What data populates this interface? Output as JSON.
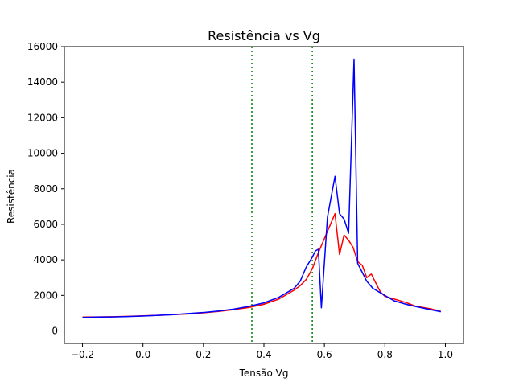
{
  "chart_data": {
    "type": "line",
    "title": "Resistência vs Vg",
    "xlabel": "Tensão Vg",
    "ylabel": "Resistência",
    "xlim": [
      -0.26,
      1.06
    ],
    "ylim": [
      -700,
      16000
    ],
    "grid": false,
    "legend": "none",
    "x_ticks": [
      -0.2,
      0.0,
      0.2,
      0.4,
      0.6,
      0.8,
      1.0
    ],
    "x_tick_labels": [
      "−0.2",
      "0.0",
      "0.2",
      "0.4",
      "0.6",
      "0.8",
      "1.0"
    ],
    "y_ticks": [
      0,
      2000,
      4000,
      6000,
      8000,
      10000,
      12000,
      14000,
      16000
    ],
    "y_tick_labels": [
      "0",
      "2000",
      "4000",
      "6000",
      "8000",
      "10000",
      "12000",
      "14000",
      "16000"
    ],
    "vlines": [
      {
        "x": 0.36,
        "color": "#008000",
        "style": "dotted"
      },
      {
        "x": 0.56,
        "color": "#008000",
        "style": "dotted"
      }
    ],
    "series": [
      {
        "color": "#ff0000",
        "points": [
          [
            -0.2,
            780
          ],
          [
            -0.15,
            790
          ],
          [
            -0.1,
            800
          ],
          [
            -0.05,
            820
          ],
          [
            0.0,
            850
          ],
          [
            0.05,
            880
          ],
          [
            0.1,
            920
          ],
          [
            0.15,
            960
          ],
          [
            0.2,
            1020
          ],
          [
            0.25,
            1100
          ],
          [
            0.3,
            1200
          ],
          [
            0.35,
            1320
          ],
          [
            0.4,
            1500
          ],
          [
            0.45,
            1800
          ],
          [
            0.5,
            2300
          ],
          [
            0.52,
            2550
          ],
          [
            0.54,
            2900
          ],
          [
            0.56,
            3500
          ],
          [
            0.58,
            4400
          ],
          [
            0.6,
            5200
          ],
          [
            0.62,
            6000
          ],
          [
            0.635,
            6600
          ],
          [
            0.65,
            4300
          ],
          [
            0.665,
            5400
          ],
          [
            0.68,
            5100
          ],
          [
            0.695,
            4700
          ],
          [
            0.71,
            3900
          ],
          [
            0.725,
            3700
          ],
          [
            0.74,
            3000
          ],
          [
            0.755,
            3200
          ],
          [
            0.77,
            2700
          ],
          [
            0.785,
            2200
          ],
          [
            0.8,
            1950
          ],
          [
            0.83,
            1800
          ],
          [
            0.87,
            1600
          ],
          [
            0.9,
            1400
          ],
          [
            0.95,
            1250
          ],
          [
            0.985,
            1100
          ]
        ]
      },
      {
        "color": "#0000ff",
        "points": [
          [
            -0.2,
            760
          ],
          [
            -0.15,
            780
          ],
          [
            -0.1,
            790
          ],
          [
            -0.05,
            810
          ],
          [
            0.0,
            840
          ],
          [
            0.05,
            880
          ],
          [
            0.1,
            920
          ],
          [
            0.15,
            980
          ],
          [
            0.2,
            1040
          ],
          [
            0.25,
            1120
          ],
          [
            0.3,
            1230
          ],
          [
            0.35,
            1380
          ],
          [
            0.4,
            1580
          ],
          [
            0.45,
            1900
          ],
          [
            0.5,
            2400
          ],
          [
            0.52,
            2800
          ],
          [
            0.54,
            3600
          ],
          [
            0.56,
            4150
          ],
          [
            0.57,
            4500
          ],
          [
            0.58,
            4600
          ],
          [
            0.59,
            1300
          ],
          [
            0.61,
            6400
          ],
          [
            0.635,
            8700
          ],
          [
            0.65,
            6600
          ],
          [
            0.665,
            6300
          ],
          [
            0.68,
            5500
          ],
          [
            0.698,
            15300
          ],
          [
            0.71,
            3800
          ],
          [
            0.725,
            3300
          ],
          [
            0.74,
            2800
          ],
          [
            0.76,
            2400
          ],
          [
            0.78,
            2200
          ],
          [
            0.8,
            2000
          ],
          [
            0.83,
            1700
          ],
          [
            0.87,
            1500
          ],
          [
            0.9,
            1380
          ],
          [
            0.95,
            1200
          ],
          [
            0.985,
            1080
          ]
        ]
      }
    ]
  }
}
